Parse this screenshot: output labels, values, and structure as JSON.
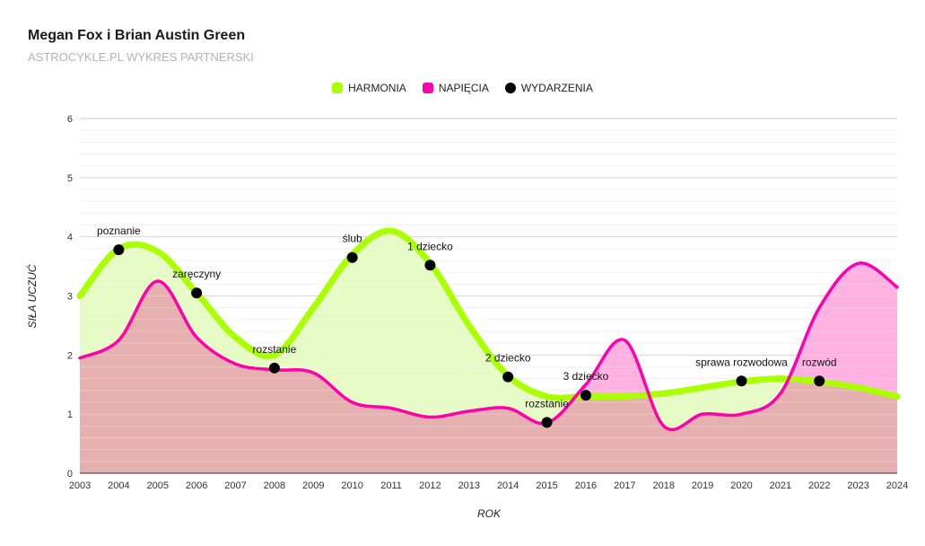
{
  "header": {
    "title": "Megan Fox i Brian Austin Green",
    "subtitle": "ASTROCYKLE.PL WYKRES PARTNERSKI"
  },
  "legend": {
    "harmony": "HARMONIA",
    "tension": "NAPIĘCIA",
    "events": "WYDARZENIA"
  },
  "colors": {
    "harmony_line": "#aaff00",
    "harmony_fill": "#e3fbbf",
    "tension_line": "#ff00aa",
    "tension_fill": "#ffaee0",
    "overlap_fill": "#e6b0b0",
    "event_dot": "#000000",
    "grid": "#e0e0e0"
  },
  "chart_data": {
    "type": "area",
    "title": "Megan Fox i Brian Austin Green",
    "xlabel": "ROK",
    "ylabel": "SIŁA UCZUĆ",
    "xlim": [
      2003,
      2024
    ],
    "ylim": [
      0,
      6
    ],
    "yticks": [
      0,
      1,
      2,
      3,
      4,
      5,
      6
    ],
    "x": [
      2003,
      2004,
      2005,
      2006,
      2007,
      2008,
      2009,
      2010,
      2011,
      2012,
      2013,
      2014,
      2015,
      2016,
      2017,
      2018,
      2019,
      2020,
      2021,
      2022,
      2023,
      2024
    ],
    "series": [
      {
        "name": "HARMONIA",
        "values": [
          3.0,
          3.8,
          3.75,
          3.05,
          2.3,
          2.0,
          2.8,
          3.7,
          4.1,
          3.55,
          2.5,
          1.65,
          1.3,
          1.3,
          1.3,
          1.35,
          1.45,
          1.55,
          1.6,
          1.55,
          1.45,
          1.3
        ]
      },
      {
        "name": "NAPIĘCIA",
        "values": [
          1.95,
          2.25,
          3.25,
          2.3,
          1.85,
          1.75,
          1.7,
          1.2,
          1.1,
          0.95,
          1.05,
          1.1,
          0.85,
          1.5,
          2.25,
          0.8,
          1.0,
          1.0,
          1.35,
          2.8,
          3.55,
          3.15
        ]
      }
    ],
    "events": [
      {
        "x": 2004,
        "y": 3.78,
        "label": "poznanie"
      },
      {
        "x": 2006,
        "y": 3.05,
        "label": "zaręczyny"
      },
      {
        "x": 2008,
        "y": 1.78,
        "label": "rozstanie"
      },
      {
        "x": 2010,
        "y": 3.65,
        "label": "ślub"
      },
      {
        "x": 2012,
        "y": 3.52,
        "label": "1 dziecko"
      },
      {
        "x": 2014,
        "y": 1.63,
        "label": "2 dziecko"
      },
      {
        "x": 2015,
        "y": 0.86,
        "label": "rozstanie"
      },
      {
        "x": 2016,
        "y": 1.32,
        "label": "3 dziecko"
      },
      {
        "x": 2020,
        "y": 1.56,
        "label": "sprawa rozwodowa"
      },
      {
        "x": 2022,
        "y": 1.56,
        "label": "rozwód"
      }
    ]
  }
}
